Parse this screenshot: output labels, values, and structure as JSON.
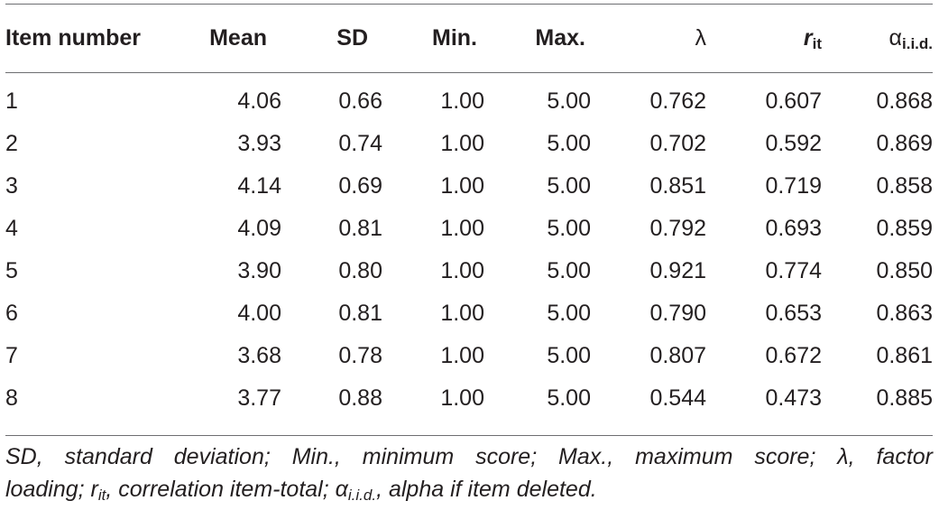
{
  "table": {
    "headers": {
      "item": "Item number",
      "mean": "Mean",
      "sd": "SD",
      "min": "Min.",
      "max": "Max.",
      "lambda": "λ",
      "rit_r": "r",
      "rit_sub": "it",
      "alpha": "α",
      "alpha_sub": "i.i.d."
    },
    "rows": [
      [
        "1",
        "4.06",
        "0.66",
        "1.00",
        "5.00",
        "0.762",
        "0.607",
        "0.868"
      ],
      [
        "2",
        "3.93",
        "0.74",
        "1.00",
        "5.00",
        "0.702",
        "0.592",
        "0.869"
      ],
      [
        "3",
        "4.14",
        "0.69",
        "1.00",
        "5.00",
        "0.851",
        "0.719",
        "0.858"
      ],
      [
        "4",
        "4.09",
        "0.81",
        "1.00",
        "5.00",
        "0.792",
        "0.693",
        "0.859"
      ],
      [
        "5",
        "3.90",
        "0.80",
        "1.00",
        "5.00",
        "0.921",
        "0.774",
        "0.850"
      ],
      [
        "6",
        "4.00",
        "0.81",
        "1.00",
        "5.00",
        "0.790",
        "0.653",
        "0.863"
      ],
      [
        "7",
        "3.68",
        "0.78",
        "1.00",
        "5.00",
        "0.807",
        "0.672",
        "0.861"
      ],
      [
        "8",
        "3.77",
        "0.88",
        "1.00",
        "5.00",
        "0.544",
        "0.473",
        "0.885"
      ]
    ]
  },
  "footnote": {
    "line1": "SD, standard deviation; Min., minimum score; Max., maximum score; λ, factor",
    "line2_a": "loading; r",
    "line2_a_sub": "it",
    "line2_b": ", correlation item-total; α",
    "line2_b_sub": "i.i.d.",
    "line2_c": ", alpha if item deleted."
  }
}
